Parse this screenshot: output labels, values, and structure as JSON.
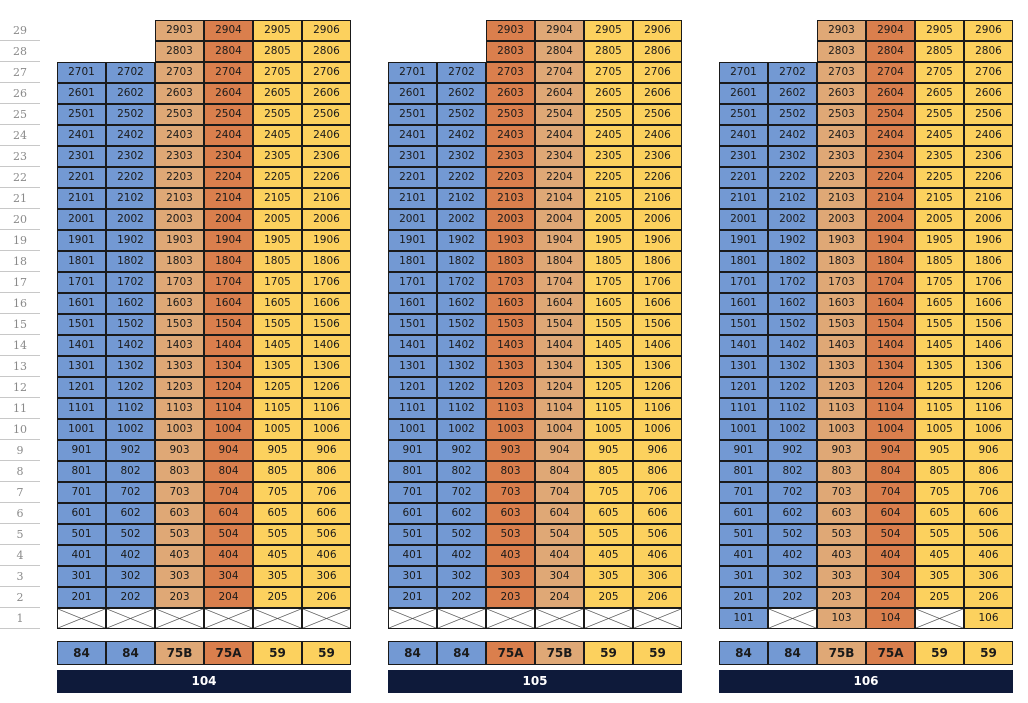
{
  "floors": [
    "29",
    "28",
    "27",
    "26",
    "25",
    "24",
    "23",
    "22",
    "21",
    "20",
    "19",
    "18",
    "17",
    "16",
    "15",
    "14",
    "13",
    "12",
    "11",
    "10",
    "9",
    "8",
    "7",
    "6",
    "5",
    "4",
    "3",
    "2",
    "1"
  ],
  "colors": {
    "blue": "#7399d3",
    "tan": "#dfa876",
    "orange": "#da7f4d",
    "yellow": "#fcd15e",
    "label_bg": "#0e1a3a"
  },
  "buildings": [
    {
      "name": "104",
      "column_types": [
        "84",
        "84",
        "75B",
        "75A",
        "59",
        "59"
      ],
      "column_colors": [
        "blue",
        "blue",
        "tan",
        "orange",
        "yellow",
        "yellow"
      ],
      "top_floor_by_column": [
        27,
        27,
        29,
        29,
        29,
        29
      ],
      "first_floor": [
        "x",
        "x",
        "x",
        "x",
        "x",
        "x"
      ]
    },
    {
      "name": "105",
      "column_types": [
        "84",
        "84",
        "75A",
        "75B",
        "59",
        "59"
      ],
      "column_colors": [
        "blue",
        "blue",
        "orange",
        "tan",
        "yellow",
        "yellow"
      ],
      "top_floor_by_column": [
        27,
        27,
        29,
        29,
        29,
        29
      ],
      "first_floor": [
        "x",
        "x",
        "x",
        "x",
        "x",
        "x"
      ]
    },
    {
      "name": "106",
      "column_types": [
        "84",
        "84",
        "75B",
        "75A",
        "59",
        "59"
      ],
      "column_colors": [
        "blue",
        "blue",
        "tan",
        "orange",
        "yellow",
        "yellow"
      ],
      "top_floor_by_column": [
        27,
        27,
        29,
        29,
        29,
        29
      ],
      "first_floor": [
        "101",
        "x",
        "103",
        "104",
        "x",
        "106"
      ]
    }
  ]
}
